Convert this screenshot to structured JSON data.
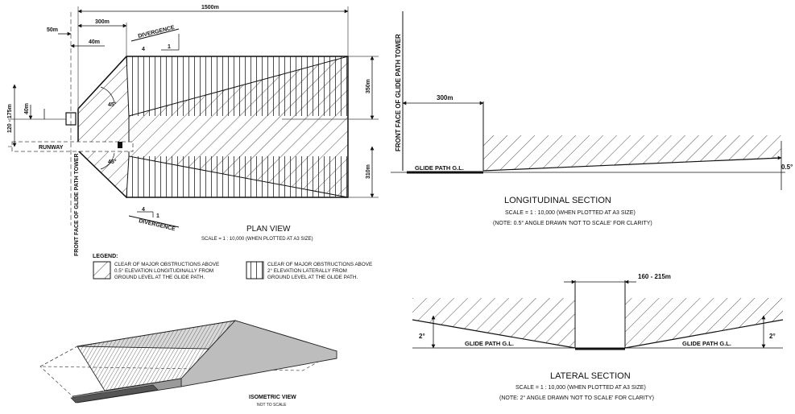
{
  "plan": {
    "dims": {
      "d1500": "1500m",
      "d300": "300m",
      "d50": "50m",
      "d40a": "40m",
      "d40b": "40m",
      "d120": "120 - 175m",
      "d350": "350m",
      "d310": "310m"
    },
    "divergence_top": "DIVERGENCE",
    "divergence_bottom": "DIVERGENCE",
    "ratio_top_num": "4",
    "ratio_top_den": "1",
    "ratio_bottom_num": "4",
    "ratio_bottom_den": "1",
    "angle_top": "45°",
    "angle_bottom": "45°",
    "runway": "RUNWAY",
    "tower_label": "FRONT FACE OF GLIDE PATH TOWER",
    "title": "PLAN VIEW",
    "scale": "SCALE = 1 : 10,000 (WHEN PLOTTED AT A3 SIZE)"
  },
  "legend": {
    "heading": "LEGEND:",
    "item1": [
      "CLEAR OF MAJOR OBSTRUCTIONS ABOVE",
      "0.5° ELEVATION LONGITUDINALLY FROM",
      "GROUND LEVEL AT THE GLIDE PATH."
    ],
    "item2": [
      "CLEAR OF MAJOR OBSTRUCTIONS ABOVE",
      "2° ELEVATION LATERALLY FROM",
      "GROUND LEVEL AT THE GLIDE PATH."
    ]
  },
  "iso": {
    "title": "ISOMETRIC VIEW",
    "sub": "NOT TO SCALE"
  },
  "longitudinal": {
    "tower_label": "FRONT FACE OF GLIDE PATH TOWER",
    "dim": "300m",
    "gl": "GLIDE PATH G.L.",
    "angle": "0.5°",
    "title": "LONGITUDINAL SECTION",
    "scale": "SCALE = 1 : 10,000 (WHEN PLOTTED AT A3 SIZE)",
    "note": "(NOTE: 0.5° ANGLE DRAWN 'NOT TO SCALE' FOR CLARITY)"
  },
  "lateral": {
    "dim": "160 - 215m",
    "gl_left": "GLIDE PATH G.L.",
    "gl_right": "GLIDE PATH G.L.",
    "angle_left": "2°",
    "angle_right": "2°",
    "title": "LATERAL SECTION",
    "scale": "SCALE = 1 : 10,000 (WHEN PLOTTED AT A3 SIZE)",
    "note": "(NOTE: 2° ANGLE DRAWN 'NOT TO SCALE' FOR CLARITY)"
  }
}
